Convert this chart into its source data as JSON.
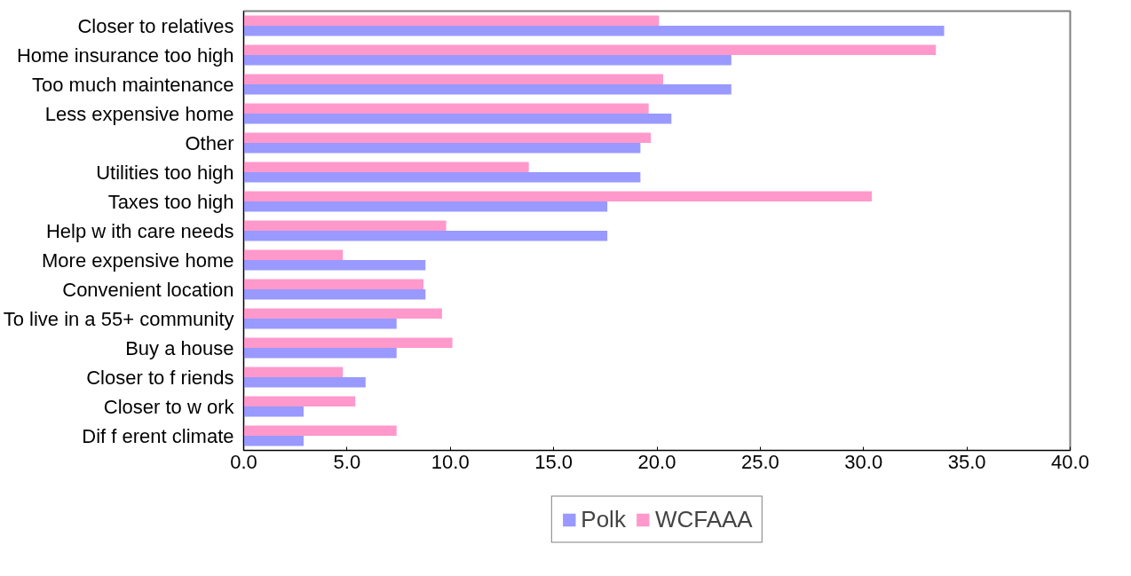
{
  "chart_data": {
    "type": "bar",
    "orientation": "horizontal",
    "categories": [
      "Closer to relatives",
      "Home insurance too high",
      "Too much maintenance",
      "Less expensive home",
      "Other",
      "Utilities too high",
      "Taxes too high",
      "Help w ith care needs",
      "More expensive home",
      "Convenient location",
      "To live in a 55+ community",
      "Buy a house",
      "Closer to f riends",
      "Closer to w ork",
      "Dif f erent climate"
    ],
    "series": [
      {
        "name": "Polk",
        "color": "#9999ff",
        "values": [
          33.9,
          23.6,
          23.6,
          20.7,
          19.2,
          19.2,
          17.6,
          17.6,
          8.8,
          8.8,
          7.4,
          7.4,
          5.9,
          2.9,
          2.9
        ]
      },
      {
        "name": "WCFAAA",
        "color": "#ff99cc",
        "values": [
          20.1,
          33.5,
          20.3,
          19.6,
          19.7,
          13.8,
          30.4,
          9.8,
          4.8,
          8.7,
          9.6,
          10.1,
          4.8,
          5.4,
          7.4
        ]
      }
    ],
    "xlim": [
      0,
      40
    ],
    "xticks": [
      {
        "value": 0,
        "label": "0.0"
      },
      {
        "value": 5,
        "label": "5.0"
      },
      {
        "value": 10,
        "label": "10.0"
      },
      {
        "value": 15,
        "label": "15.0"
      },
      {
        "value": 20,
        "label": "20.0"
      },
      {
        "value": 25,
        "label": "25.0"
      },
      {
        "value": 30,
        "label": "30.0"
      },
      {
        "value": 35,
        "label": "35.0"
      },
      {
        "value": 40,
        "label": "40.0"
      }
    ],
    "grid": false,
    "legend": "bottom"
  }
}
